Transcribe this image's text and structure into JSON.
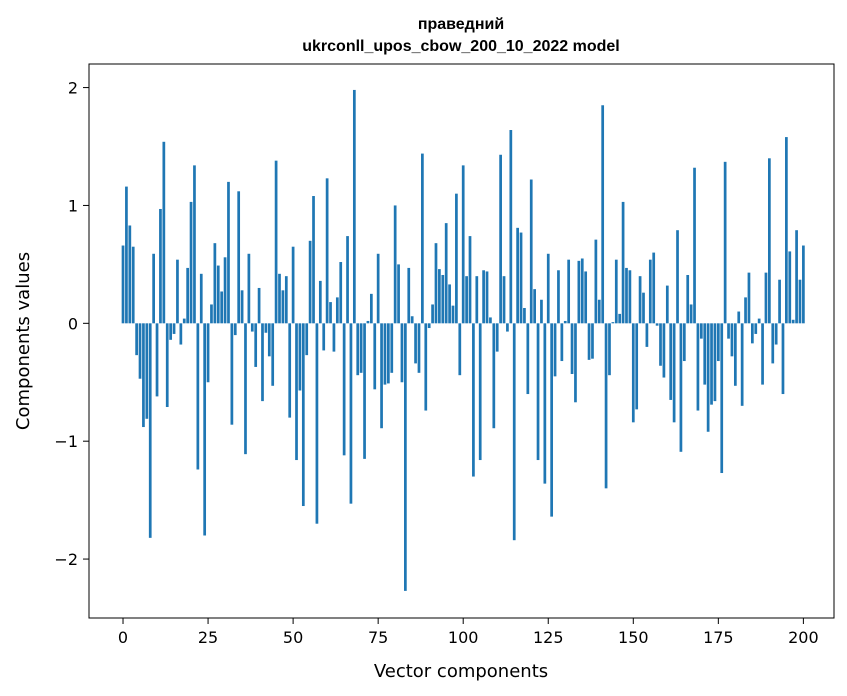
{
  "chart_data": {
    "type": "bar",
    "title_line1": "праведний",
    "title_line2": "ukrconll_upos_cbow_200_10_2022 model",
    "xlabel": "Vector components",
    "ylabel": "Components values",
    "xlim": [
      -10,
      209
    ],
    "ylim": [
      -2.5,
      2.2
    ],
    "x_ticks": [
      0,
      25,
      50,
      75,
      100,
      125,
      150,
      175,
      200
    ],
    "y_ticks": [
      -2,
      -1,
      0,
      1,
      2
    ],
    "y_tick_labels": [
      "−2",
      "−1",
      "0",
      "1",
      "2"
    ],
    "grid": false,
    "bar_color": "#1f77b4",
    "values": [
      0.66,
      1.16,
      0.83,
      0.65,
      -0.27,
      -0.47,
      -0.88,
      -0.81,
      -1.82,
      0.59,
      -0.62,
      0.97,
      1.54,
      -0.71,
      -0.14,
      -0.09,
      0.54,
      -0.18,
      0.04,
      0.47,
      1.03,
      1.34,
      -1.24,
      0.42,
      -1.8,
      -0.5,
      0.16,
      0.68,
      0.49,
      0.27,
      0.56,
      1.2,
      -0.86,
      -0.1,
      1.12,
      0.28,
      -1.11,
      0.59,
      -0.07,
      -0.37,
      0.3,
      -0.66,
      -0.08,
      -0.28,
      -0.53,
      1.38,
      0.42,
      0.28,
      0.4,
      -0.8,
      0.65,
      -1.16,
      -0.57,
      -1.55,
      -0.27,
      0.7,
      1.08,
      -1.7,
      0.36,
      -0.23,
      1.23,
      0.18,
      -0.24,
      0.22,
      0.52,
      -1.12,
      0.74,
      -1.53,
      1.98,
      -0.44,
      -0.42,
      -1.15,
      0.02,
      0.25,
      -0.56,
      0.59,
      -0.89,
      -0.52,
      -0.51,
      -0.42,
      1.0,
      0.5,
      -0.5,
      -2.27,
      0.47,
      0.06,
      -0.34,
      -0.42,
      1.44,
      -0.74,
      -0.04,
      0.16,
      0.68,
      0.46,
      0.41,
      0.85,
      0.33,
      0.15,
      1.1,
      -0.44,
      1.34,
      0.4,
      0.74,
      -1.3,
      0.4,
      -1.16,
      0.45,
      0.44,
      0.05,
      -0.89,
      -0.24,
      1.43,
      0.4,
      -0.07,
      1.64,
      -1.84,
      0.81,
      0.77,
      0.13,
      -0.6,
      1.22,
      0.29,
      -1.16,
      0.2,
      -1.36,
      0.59,
      -1.64,
      -0.45,
      0.45,
      -0.32,
      0.02,
      0.54,
      -0.43,
      -0.67,
      0.53,
      0.55,
      0.44,
      -0.31,
      -0.3,
      0.71,
      0.2,
      1.85,
      -1.4,
      -0.44,
      0.01,
      0.54,
      0.08,
      1.03,
      0.47,
      0.45,
      -0.84,
      -0.73,
      0.4,
      0.26,
      -0.2,
      0.54,
      0.6,
      -0.02,
      -0.36,
      -0.46,
      0.32,
      -0.65,
      -0.84,
      0.79,
      -1.09,
      -0.32,
      0.41,
      0.16,
      1.32,
      -0.74,
      -0.13,
      -0.52,
      -0.92,
      -0.69,
      -0.66,
      -0.32,
      -1.27,
      1.37,
      -0.13,
      -0.28,
      -0.53,
      0.1,
      -0.7,
      0.22,
      0.43,
      -0.17,
      -0.09,
      0.04,
      -0.52,
      0.43,
      1.4,
      -0.34,
      -0.18,
      0.37,
      -0.6,
      1.58,
      0.61,
      0.03,
      0.79,
      0.37,
      0.66
    ]
  }
}
